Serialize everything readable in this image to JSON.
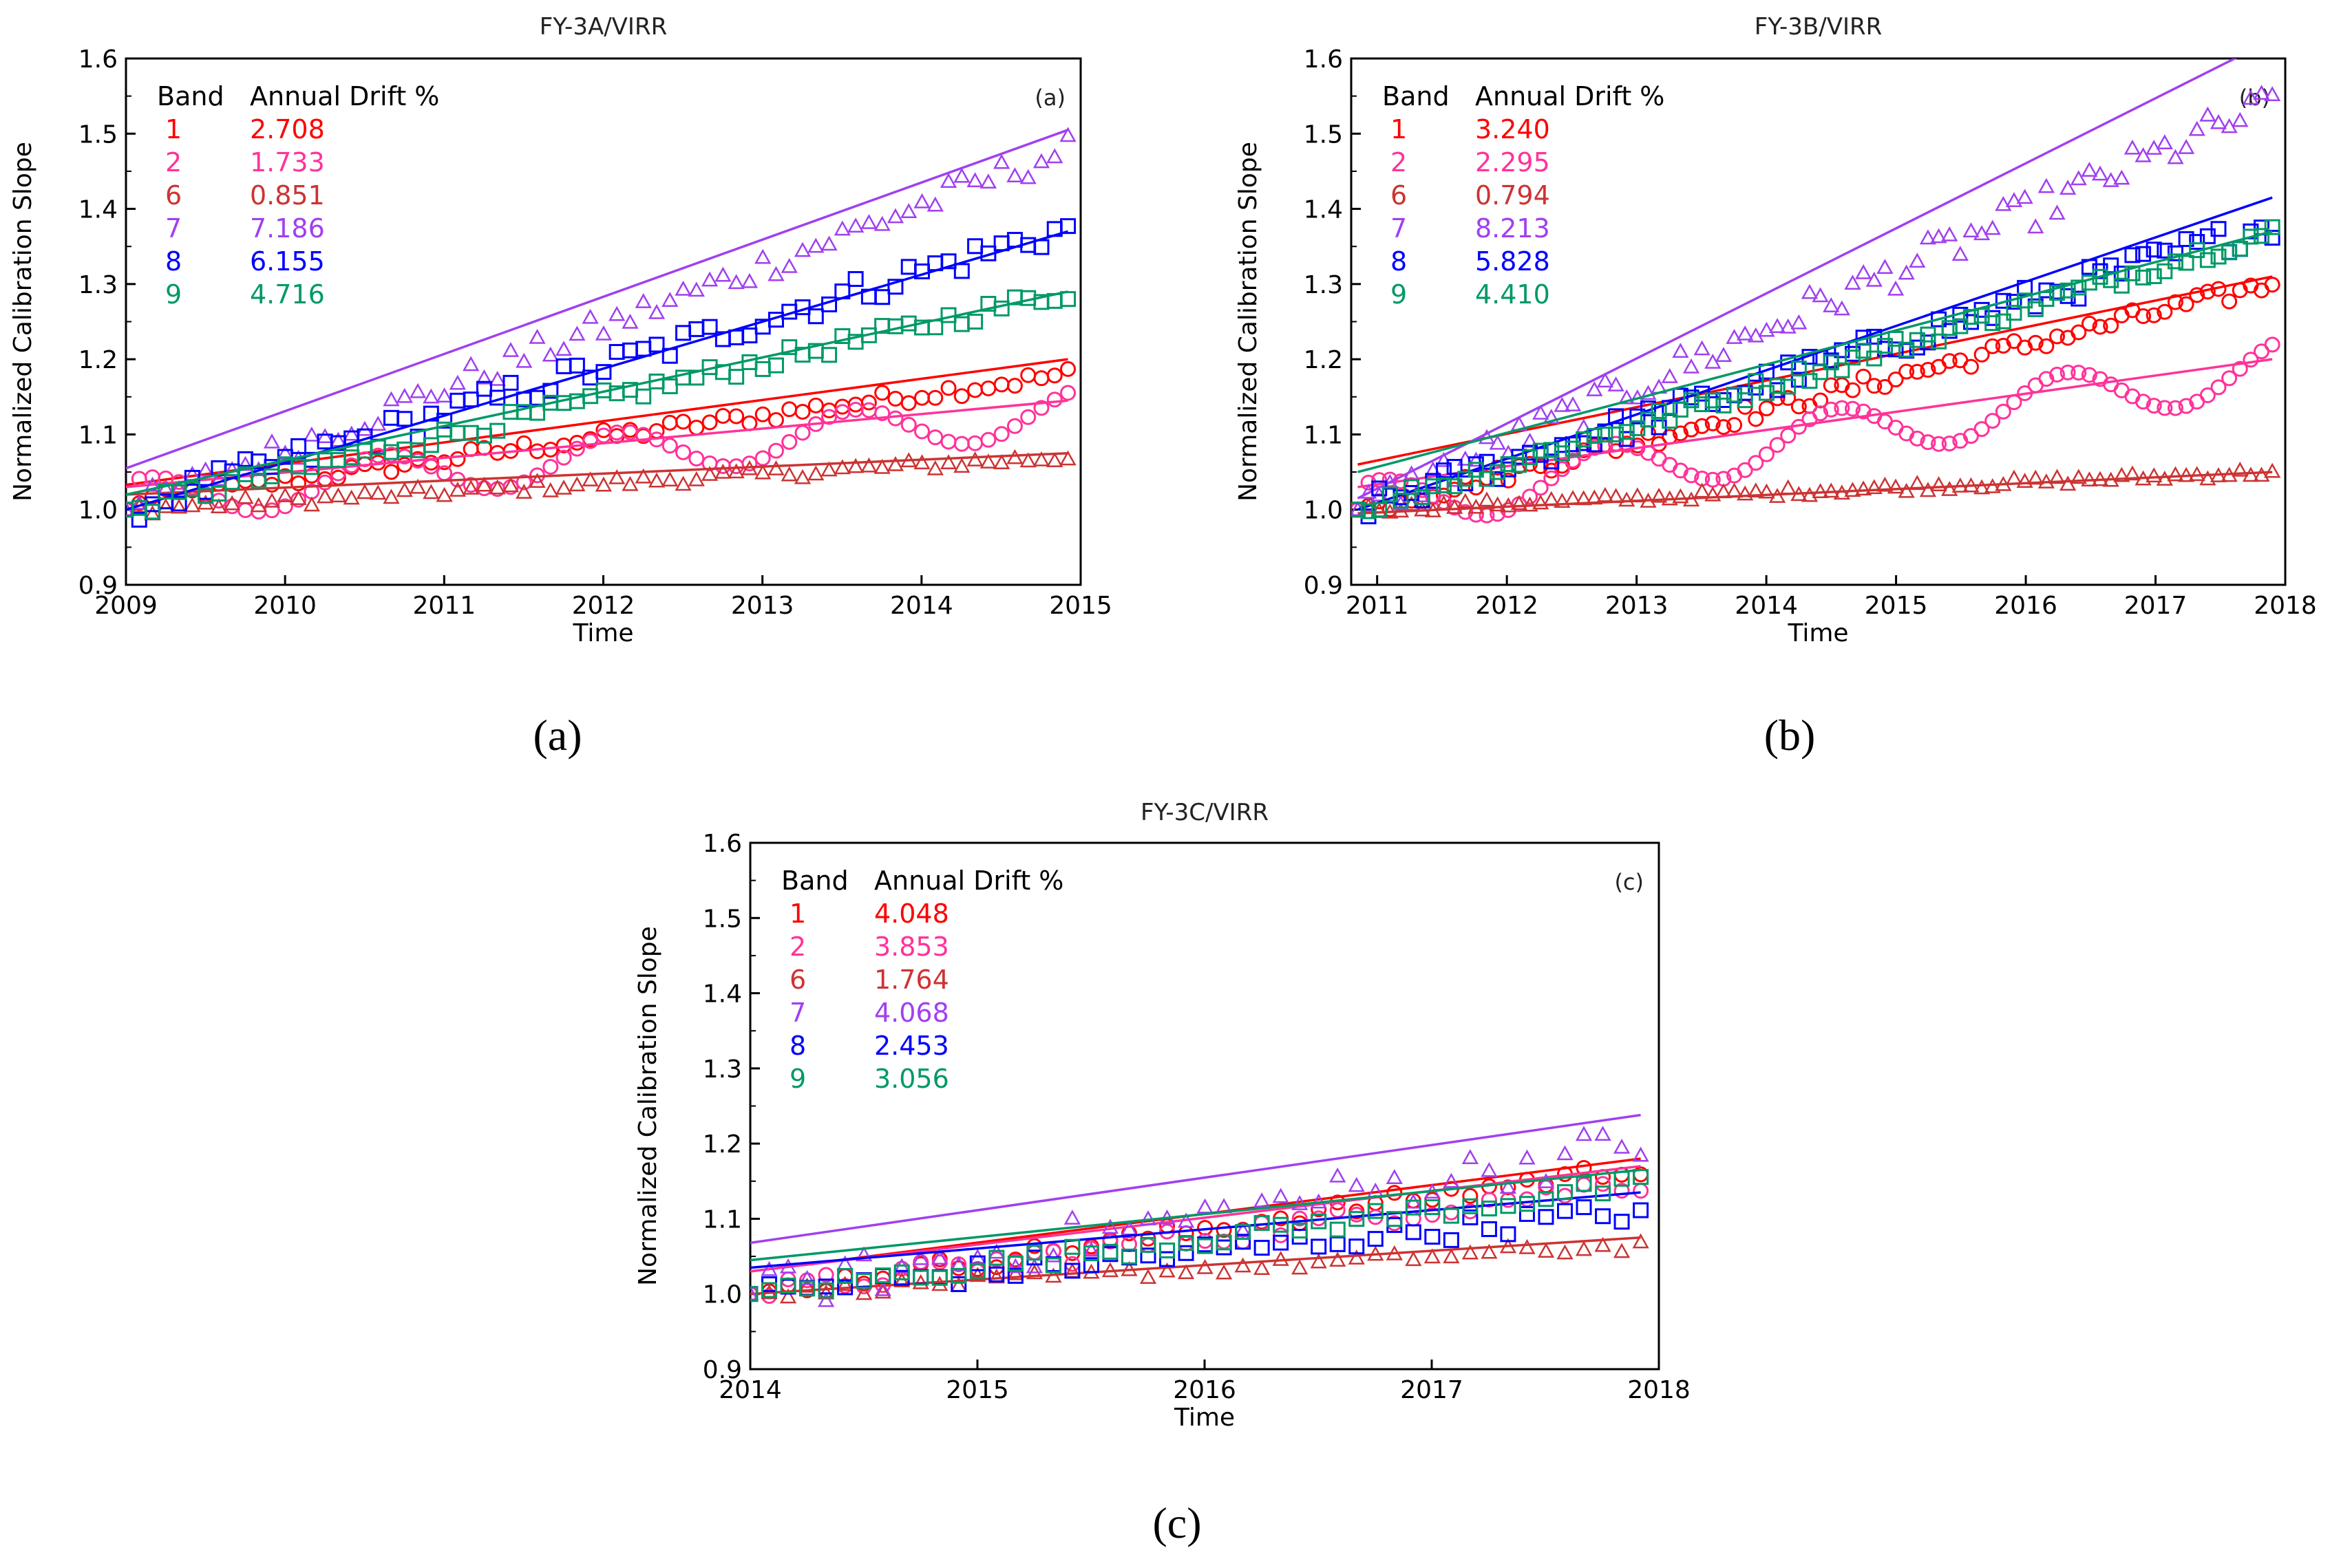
{
  "chart_data": [
    {
      "type": "scatter",
      "title": "FY-3A/VIRR",
      "panel_tag": "(a)",
      "caption": "(a)",
      "xlabel": "Time",
      "ylabel": "Normalized Calibration Slope",
      "xlim": [
        2009,
        2015
      ],
      "ylim": [
        0.9,
        1.6
      ],
      "x_ticks": [
        "2009",
        "2010",
        "2011",
        "2012",
        "2013",
        "2014",
        "2015"
      ],
      "y_ticks": [
        "0.9",
        "1.0",
        "1.1",
        "1.2",
        "1.3",
        "1.4",
        "1.5",
        "1.6"
      ],
      "legend_header": {
        "band": "Band",
        "drift": "Annual Drift %"
      },
      "legend_position": "top-left",
      "t0": 2009.0,
      "t1": 2014.92,
      "series": [
        {
          "band": "1",
          "drift": "2.708",
          "color": "#ff0000",
          "marker": "circle",
          "fit_start": 1.033,
          "fit_end": 1.2,
          "shape": "linear",
          "amp": 0.01,
          "pts_start": 1.01,
          "pts_end": 1.18
        },
        {
          "band": "2",
          "drift": "1.733",
          "color": "#ff3399",
          "marker": "circle",
          "fit_start": 1.03,
          "fit_end": 1.145,
          "shape": "wavy",
          "amp": 0.03,
          "pts_start": 1.01,
          "pts_end": 1.13
        },
        {
          "band": "6",
          "drift": "0.851",
          "color": "#cc3333",
          "marker": "triangle",
          "fit_start": 1.02,
          "fit_end": 1.075,
          "shape": "linear",
          "amp": 0.008,
          "pts_start": 1.0,
          "pts_end": 1.07
        },
        {
          "band": "7",
          "drift": "7.186",
          "color": "#a040f0",
          "marker": "triangle",
          "fit_start": 1.055,
          "fit_end": 1.505,
          "shape": "linear",
          "amp": 0.02,
          "pts_start": 1.0,
          "pts_end": 1.48
        },
        {
          "band": "8",
          "drift": "6.155",
          "color": "#0000ff",
          "marker": "square",
          "fit_start": 1.0,
          "fit_end": 1.37,
          "shape": "linear",
          "amp": 0.02,
          "pts_start": 1.0,
          "pts_end": 1.375
        },
        {
          "band": "9",
          "drift": "4.716",
          "color": "#009966",
          "marker": "square",
          "fit_start": 1.02,
          "fit_end": 1.29,
          "shape": "linear",
          "amp": 0.012,
          "pts_start": 1.0,
          "pts_end": 1.29
        }
      ]
    },
    {
      "type": "scatter",
      "title": "FY-3B/VIRR",
      "panel_tag": "(b)",
      "caption": "(b)",
      "xlabel": "Time",
      "ylabel": "Normalized Calibration Slope",
      "xlim": [
        2010.8,
        2018
      ],
      "ylim": [
        0.9,
        1.6
      ],
      "x_ticks": [
        "2011",
        "2012",
        "2013",
        "2014",
        "2015",
        "2016",
        "2017",
        "2018"
      ],
      "y_ticks": [
        "0.9",
        "1.0",
        "1.1",
        "1.2",
        "1.3",
        "1.4",
        "1.5",
        "1.6"
      ],
      "legend_header": {
        "band": "Band",
        "drift": "Annual Drift %"
      },
      "legend_position": "top-left",
      "t0": 2010.85,
      "t1": 2017.9,
      "series": [
        {
          "band": "1",
          "drift": "3.240",
          "color": "#ff0000",
          "marker": "circle",
          "fit_start": 1.06,
          "fit_end": 1.31,
          "shape": "linear",
          "amp": 0.012,
          "pts_start": 1.0,
          "pts_end": 1.3
        },
        {
          "band": "2",
          "drift": "2.295",
          "color": "#ff3399",
          "marker": "circle",
          "fit_start": 1.03,
          "fit_end": 1.2,
          "shape": "wavy",
          "amp": 0.035,
          "pts_start": 1.0,
          "pts_end": 1.19
        },
        {
          "band": "6",
          "drift": "0.794",
          "color": "#cc3333",
          "marker": "triangle",
          "fit_start": 0.995,
          "fit_end": 1.05,
          "shape": "linear",
          "amp": 0.006,
          "pts_start": 1.0,
          "pts_end": 1.05
        },
        {
          "band": "7",
          "drift": "8.213",
          "color": "#a040f0",
          "marker": "triangle",
          "fit_start": 1.015,
          "fit_end": 1.625,
          "shape": "linear",
          "amp": 0.025,
          "pts_start": 1.0,
          "pts_end": 1.54
        },
        {
          "band": "8",
          "drift": "5.828",
          "color": "#0000ff",
          "marker": "square",
          "fit_start": 1.0,
          "fit_end": 1.415,
          "shape": "linear",
          "amp": 0.02,
          "pts_start": 1.0,
          "pts_end": 1.38
        },
        {
          "band": "9",
          "drift": "4.410",
          "color": "#009966",
          "marker": "square",
          "fit_start": 1.05,
          "fit_end": 1.37,
          "shape": "linear",
          "amp": 0.012,
          "pts_start": 1.0,
          "pts_end": 1.37
        }
      ]
    },
    {
      "type": "scatter",
      "title": "FY-3C/VIRR",
      "panel_tag": "(c)",
      "caption": "(c)",
      "xlabel": "Time",
      "ylabel": "Normalized Calibration Slope",
      "xlim": [
        2014,
        2018
      ],
      "ylim": [
        0.9,
        1.6
      ],
      "x_ticks": [
        "2014",
        "2015",
        "2016",
        "2017",
        "2018"
      ],
      "y_ticks": [
        "0.9",
        "1.0",
        "1.1",
        "1.2",
        "1.3",
        "1.4",
        "1.5",
        "1.6"
      ],
      "legend_header": {
        "band": "Band",
        "drift": "Annual Drift %"
      },
      "legend_position": "top-left",
      "t0": 2014.0,
      "t1": 2017.92,
      "series": [
        {
          "band": "1",
          "drift": "4.048",
          "color": "#ff0000",
          "marker": "circle",
          "fit_start": 1.03,
          "fit_end": 1.18,
          "shape": "linear",
          "amp": 0.012,
          "pts_start": 1.0,
          "pts_end": 1.17
        },
        {
          "band": "2",
          "drift": "3.853",
          "color": "#ff3399",
          "marker": "circle",
          "fit_start": 1.03,
          "fit_end": 1.17,
          "shape": "linear",
          "amp": 0.015,
          "pts_start": 1.0,
          "pts_end": 1.15
        },
        {
          "band": "6",
          "drift": "1.764",
          "color": "#cc3333",
          "marker": "triangle",
          "fit_start": 1.0,
          "fit_end": 1.075,
          "shape": "linear",
          "amp": 0.008,
          "pts_start": 1.0,
          "pts_end": 1.065
        },
        {
          "band": "7",
          "drift": "4.068",
          "color": "#a040f0",
          "marker": "triangle",
          "fit_start": 1.068,
          "fit_end": 1.238,
          "shape": "linear",
          "amp": 0.03,
          "pts_start": 1.0,
          "pts_end": 1.2
        },
        {
          "band": "8",
          "drift": "2.453",
          "color": "#0000ff",
          "marker": "square",
          "fit_start": 1.035,
          "fit_end": 1.135,
          "shape": "linear",
          "amp": 0.015,
          "pts_start": 1.0,
          "pts_end": 1.11
        },
        {
          "band": "9",
          "drift": "3.056",
          "color": "#009966",
          "marker": "square",
          "fit_start": 1.045,
          "fit_end": 1.165,
          "shape": "linear",
          "amp": 0.012,
          "pts_start": 1.0,
          "pts_end": 1.145
        }
      ]
    }
  ]
}
